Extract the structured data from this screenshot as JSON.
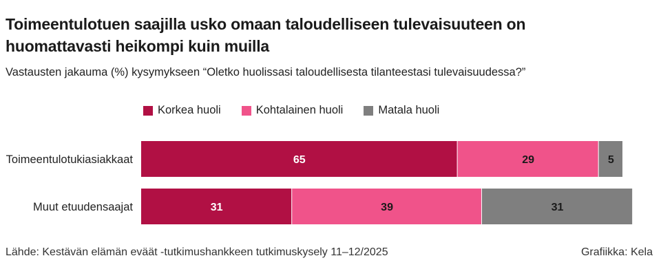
{
  "title": "Toimeentulotuen saajilla usko omaan taloudelliseen tulevaisuuteen on huomattavasti heikompi kuin muilla",
  "subtitle": "Vastausten jakauma (%) kysymykseen “Oletko huolissasi taloudellisesta tilanteestasi tulevaisuudessa?”",
  "legend": [
    {
      "label": "Korkea huoli",
      "color": "#b11044"
    },
    {
      "label": "Kohtalainen huoli",
      "color": "#f0538a"
    },
    {
      "label": "Matala huoli",
      "color": "#7f7f7f"
    }
  ],
  "chart_data": {
    "type": "bar",
    "orientation": "horizontal",
    "stacked": true,
    "categories": [
      "Toimeentulotukiasiakkaat",
      "Muut etuudensaajat"
    ],
    "series": [
      {
        "name": "Korkea huoli",
        "color": "#b11044",
        "values": [
          65,
          31
        ]
      },
      {
        "name": "Kohtalainen huoli",
        "color": "#f0538a",
        "values": [
          29,
          39
        ]
      },
      {
        "name": "Matala huoli",
        "color": "#7f7f7f",
        "values": [
          5,
          31
        ]
      }
    ],
    "xlim": [
      0,
      99
    ],
    "legend_position": "top",
    "grid": false
  },
  "footer": {
    "source": "Lähde: Kestävän elämän eväät -tutkimushankkeen tutkimuskysely 11–12/2025",
    "credit": "Grafiikka: Kela"
  }
}
